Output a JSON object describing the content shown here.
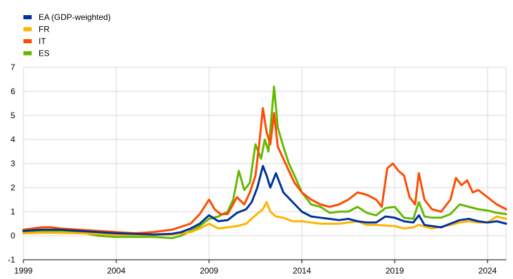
{
  "chart_data": {
    "type": "line",
    "title": "",
    "xlabel": "",
    "ylabel": "",
    "ylim": [
      -1,
      7
    ],
    "xlim": [
      1999,
      2025
    ],
    "y_ticks": [
      "7",
      "6",
      "5",
      "4",
      "3",
      "2",
      "1",
      "0",
      "-1"
    ],
    "x_ticks": [
      "1999",
      "2004",
      "2009",
      "2014",
      "2019",
      "2024"
    ],
    "grid": "horizontal and vertical gridlines",
    "legend_placement": "top-left",
    "series": [
      {
        "name": "EA (GDP-weighted)",
        "color": "#003299",
        "x": [
          1999.0,
          2000.0,
          2001.0,
          2002.0,
          2003.0,
          2004.0,
          2005.0,
          2006.0,
          2007.0,
          2007.5,
          2008.0,
          2008.5,
          2009.0,
          2009.5,
          2010.0,
          2010.5,
          2011.0,
          2011.3,
          2011.6,
          2011.9,
          2012.1,
          2012.3,
          2012.6,
          2012.8,
          2013.0,
          2013.5,
          2014.0,
          2014.5,
          2015.0,
          2015.5,
          2016.0,
          2016.5,
          2017.0,
          2017.5,
          2018.0,
          2018.5,
          2019.0,
          2019.5,
          2020.0,
          2020.3,
          2020.6,
          2021.0,
          2021.5,
          2022.0,
          2022.5,
          2023.0,
          2023.5,
          2024.0,
          2024.5,
          2025.0
        ],
        "values": [
          0.2,
          0.25,
          0.25,
          0.2,
          0.15,
          0.1,
          0.08,
          0.05,
          0.08,
          0.15,
          0.3,
          0.5,
          0.85,
          0.6,
          0.65,
          0.95,
          1.1,
          1.4,
          2.0,
          2.9,
          2.5,
          2.0,
          2.6,
          2.2,
          1.8,
          1.4,
          1.0,
          0.8,
          0.75,
          0.7,
          0.65,
          0.7,
          0.6,
          0.55,
          0.55,
          0.8,
          0.75,
          0.6,
          0.55,
          0.85,
          0.45,
          0.4,
          0.35,
          0.5,
          0.65,
          0.7,
          0.6,
          0.55,
          0.6,
          0.5
        ]
      },
      {
        "name": "FR",
        "color": "#ffb400",
        "x": [
          1999.0,
          2000.0,
          2001.0,
          2002.0,
          2003.0,
          2004.0,
          2005.0,
          2006.0,
          2007.0,
          2008.0,
          2008.5,
          2009.0,
          2009.5,
          2010.0,
          2010.5,
          2011.0,
          2011.5,
          2011.9,
          2012.1,
          2012.3,
          2012.6,
          2013.0,
          2013.5,
          2014.0,
          2014.5,
          2015.0,
          2016.0,
          2017.0,
          2017.5,
          2018.0,
          2019.0,
          2019.5,
          2020.0,
          2020.3,
          2021.0,
          2022.0,
          2022.5,
          2023.0,
          2023.5,
          2024.0,
          2024.5,
          2025.0
        ],
        "values": [
          0.1,
          0.12,
          0.12,
          0.1,
          0.08,
          0.05,
          0.04,
          0.03,
          0.05,
          0.15,
          0.3,
          0.5,
          0.3,
          0.35,
          0.4,
          0.5,
          0.85,
          1.1,
          1.4,
          1.0,
          0.8,
          0.75,
          0.6,
          0.6,
          0.55,
          0.5,
          0.5,
          0.6,
          0.45,
          0.45,
          0.4,
          0.3,
          0.35,
          0.45,
          0.3,
          0.45,
          0.55,
          0.6,
          0.55,
          0.55,
          0.8,
          0.7
        ]
      },
      {
        "name": "IT",
        "color": "#ff4b00",
        "x": [
          1999.0,
          2000.0,
          2000.5,
          2001.0,
          2002.0,
          2003.0,
          2004.0,
          2005.0,
          2006.0,
          2007.0,
          2008.0,
          2008.5,
          2009.0,
          2009.3,
          2009.6,
          2010.0,
          2010.5,
          2010.9,
          2011.2,
          2011.5,
          2011.7,
          2011.9,
          2012.1,
          2012.3,
          2012.5,
          2012.7,
          2013.0,
          2013.3,
          2013.6,
          2014.0,
          2014.5,
          2015.0,
          2015.5,
          2016.0,
          2016.5,
          2017.0,
          2017.5,
          2018.0,
          2018.3,
          2018.6,
          2018.9,
          2019.2,
          2019.5,
          2019.8,
          2020.1,
          2020.3,
          2020.6,
          2021.0,
          2021.5,
          2022.0,
          2022.3,
          2022.6,
          2022.9,
          2023.2,
          2023.5,
          2024.0,
          2024.5,
          2025.0
        ],
        "values": [
          0.25,
          0.35,
          0.35,
          0.3,
          0.25,
          0.2,
          0.15,
          0.1,
          0.15,
          0.25,
          0.5,
          0.9,
          1.5,
          1.1,
          0.9,
          0.9,
          1.6,
          1.3,
          1.8,
          2.5,
          3.8,
          5.3,
          4.3,
          3.8,
          5.1,
          3.7,
          3.2,
          2.7,
          2.2,
          1.8,
          1.5,
          1.3,
          1.2,
          1.3,
          1.5,
          1.8,
          1.7,
          1.5,
          1.2,
          2.8,
          3.0,
          2.7,
          2.5,
          1.6,
          1.3,
          2.6,
          1.5,
          1.1,
          1.0,
          1.5,
          2.4,
          2.1,
          2.3,
          1.8,
          1.9,
          1.6,
          1.3,
          1.1
        ]
      },
      {
        "name": "ES",
        "color": "#65b800",
        "x": [
          1999.0,
          2000.0,
          2001.0,
          2002.0,
          2003.0,
          2004.0,
          2005.0,
          2006.0,
          2007.0,
          2007.5,
          2008.0,
          2008.5,
          2009.0,
          2009.5,
          2010.0,
          2010.3,
          2010.6,
          2010.9,
          2011.2,
          2011.5,
          2011.8,
          2012.0,
          2012.2,
          2012.5,
          2012.7,
          2013.0,
          2013.3,
          2013.6,
          2014.0,
          2014.5,
          2015.0,
          2015.5,
          2016.0,
          2016.5,
          2017.0,
          2017.5,
          2018.0,
          2018.5,
          2019.0,
          2019.5,
          2020.0,
          2020.3,
          2020.6,
          2021.0,
          2021.5,
          2022.0,
          2022.5,
          2023.0,
          2023.5,
          2024.0,
          2024.5,
          2025.0
        ],
        "values": [
          0.15,
          0.2,
          0.2,
          0.15,
          0.0,
          -0.05,
          -0.05,
          -0.05,
          -0.1,
          0.0,
          0.2,
          0.4,
          0.7,
          0.8,
          1.0,
          1.5,
          2.7,
          1.9,
          2.2,
          3.8,
          3.2,
          4.0,
          3.5,
          6.2,
          4.5,
          3.7,
          3.0,
          2.5,
          1.8,
          1.3,
          1.2,
          0.95,
          1.0,
          1.0,
          1.2,
          0.95,
          0.85,
          1.15,
          1.2,
          0.75,
          0.7,
          1.4,
          0.8,
          0.75,
          0.75,
          0.9,
          1.3,
          1.2,
          1.1,
          1.05,
          0.95,
          0.9
        ]
      }
    ]
  }
}
